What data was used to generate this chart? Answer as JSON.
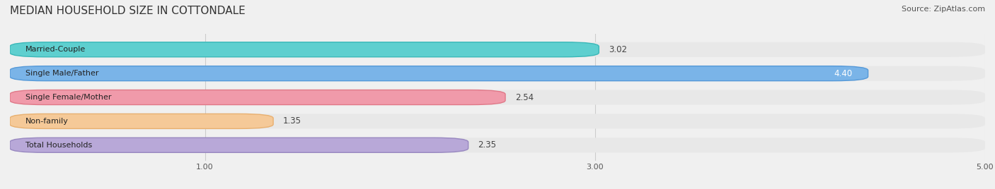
{
  "title": "MEDIAN HOUSEHOLD SIZE IN COTTONDALE",
  "source": "Source: ZipAtlas.com",
  "categories": [
    "Married-Couple",
    "Single Male/Father",
    "Single Female/Mother",
    "Non-family",
    "Total Households"
  ],
  "values": [
    3.02,
    4.4,
    2.54,
    1.35,
    2.35
  ],
  "bar_colors": [
    "#5ecfcf",
    "#7ab4e8",
    "#f09aaa",
    "#f5c998",
    "#b8a8d8"
  ],
  "bar_edge_colors": [
    "#3ab8b8",
    "#5599d8",
    "#e07888",
    "#e8b070",
    "#9888c0"
  ],
  "value_label_colors": [
    "#444444",
    "#ffffff",
    "#444444",
    "#444444",
    "#444444"
  ],
  "value_inside_bar": [
    false,
    true,
    false,
    false,
    false
  ],
  "xlim": [
    0,
    5.0
  ],
  "xticks": [
    1.0,
    3.0,
    5.0
  ],
  "background_color": "#f0f0f0",
  "bar_bg_color": "#e8e8e8",
  "title_fontsize": 11,
  "source_fontsize": 8,
  "label_fontsize": 8,
  "value_fontsize": 8.5,
  "figsize": [
    14.06,
    2.68
  ],
  "dpi": 100
}
